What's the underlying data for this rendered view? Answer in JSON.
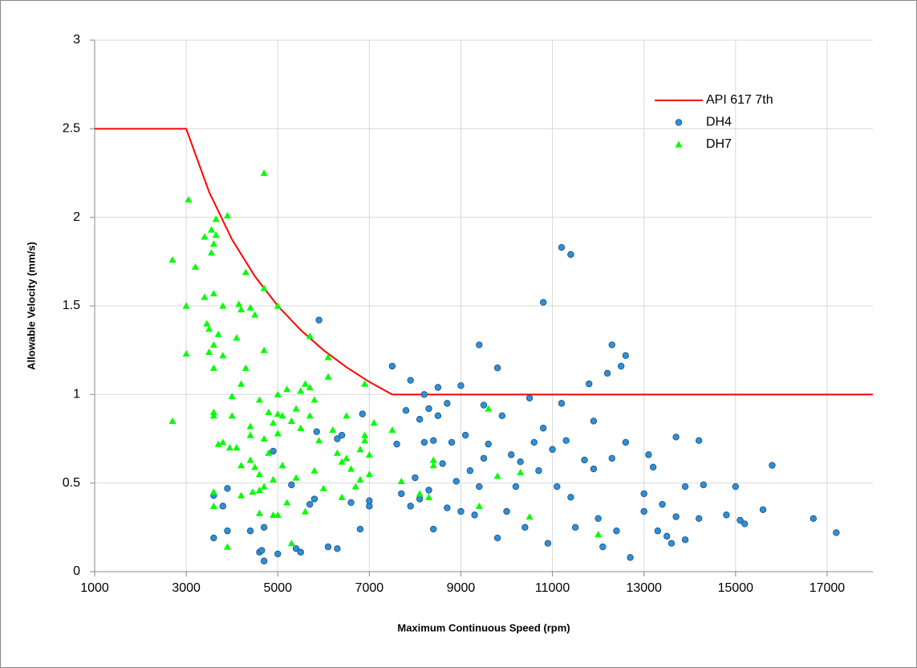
{
  "chart_data": {
    "type": "scatter",
    "x_label": "Maximum Continuous Speed (rpm)",
    "y_label": "Allowable Velocity (mm/s)",
    "xlim": [
      1000,
      18000
    ],
    "xticks": [
      1000,
      3000,
      5000,
      7000,
      9000,
      11000,
      13000,
      15000,
      17000
    ],
    "ylim": [
      0,
      3
    ],
    "yticks": [
      0,
      0.5,
      1,
      1.5,
      2,
      2.5,
      3
    ],
    "grid": true,
    "legend": "upper right",
    "series": [
      {
        "name": "API 617 7th",
        "marker": "line",
        "color": "#ff0000",
        "x": [
          1000,
          3000,
          3500,
          4000,
          4500,
          5000,
          5500,
          6000,
          6500,
          7000,
          7500,
          18000
        ],
        "values": [
          2.5,
          2.5,
          2.143,
          1.875,
          1.667,
          1.5,
          1.364,
          1.25,
          1.154,
          1.071,
          1,
          1
        ]
      },
      {
        "name": "DH4",
        "marker": "circle",
        "color": "#2e8fd8",
        "x": [
          3600,
          3600,
          3800,
          3900,
          3900,
          4400,
          4600,
          4650,
          4700,
          4700,
          4900,
          5000,
          5300,
          5400,
          5500,
          5700,
          5800,
          5850,
          5900,
          6100,
          6300,
          6300,
          6400,
          6600,
          6800,
          6850,
          7000,
          7000,
          7500,
          7600,
          7700,
          7800,
          7900,
          7900,
          8000,
          8100,
          8100,
          8200,
          8200,
          8300,
          8300,
          8400,
          8400,
          8500,
          8500,
          8600,
          8700,
          8700,
          8800,
          8900,
          9000,
          9000,
          9100,
          9200,
          9300,
          9400,
          9400,
          9500,
          9500,
          9600,
          9800,
          9800,
          9900,
          10000,
          10100,
          10200,
          10300,
          10400,
          10500,
          10600,
          10700,
          10800,
          10800,
          10900,
          11000,
          11100,
          11200,
          11200,
          11300,
          11400,
          11400,
          11500,
          11700,
          11800,
          11900,
          11900,
          12000,
          12100,
          12200,
          12300,
          12300,
          12400,
          12500,
          12600,
          12600,
          12700,
          13000,
          13000,
          13100,
          13200,
          13300,
          13400,
          13500,
          13600,
          13700,
          13700,
          13900,
          13900,
          14200,
          14200,
          14300,
          14800,
          15000,
          15100,
          15200,
          15600,
          15800,
          16700,
          17200
        ],
        "values": [
          0.19,
          0.43,
          0.37,
          0.47,
          0.23,
          0.23,
          0.11,
          0.12,
          0.06,
          0.25,
          0.68,
          0.1,
          0.49,
          0.13,
          0.11,
          0.38,
          0.41,
          0.79,
          1.42,
          0.14,
          0.13,
          0.75,
          0.77,
          0.39,
          0.24,
          0.89,
          0.37,
          0.4,
          1.16,
          0.72,
          0.44,
          0.91,
          1.08,
          0.37,
          0.53,
          0.86,
          0.41,
          1.0,
          0.73,
          0.92,
          0.46,
          0.24,
          0.74,
          1.04,
          0.88,
          0.61,
          0.95,
          0.36,
          0.73,
          0.51,
          1.05,
          0.34,
          0.77,
          0.57,
          0.32,
          1.28,
          0.48,
          0.94,
          0.64,
          0.72,
          1.15,
          0.19,
          0.88,
          0.34,
          0.66,
          0.48,
          0.62,
          0.25,
          0.98,
          0.73,
          0.57,
          1.52,
          0.81,
          0.16,
          0.69,
          0.48,
          1.83,
          0.95,
          0.74,
          1.79,
          0.42,
          0.25,
          0.63,
          1.06,
          0.85,
          0.58,
          0.3,
          0.14,
          1.12,
          1.28,
          0.64,
          0.23,
          1.16,
          1.22,
          0.73,
          0.08,
          0.44,
          0.34,
          0.66,
          0.59,
          0.23,
          0.38,
          0.2,
          0.16,
          0.76,
          0.31,
          0.48,
          0.18,
          0.74,
          0.3,
          0.49,
          0.32,
          0.48,
          0.29,
          0.27,
          0.35,
          0.6,
          0.3,
          0.22
        ]
      },
      {
        "name": "DH7",
        "marker": "triangle",
        "color": "#00ff00",
        "x": [
          2700,
          2700,
          3000,
          3000,
          3050,
          3200,
          3400,
          3400,
          3450,
          3500,
          3500,
          3550,
          3550,
          3600,
          3600,
          3600,
          3600,
          3600,
          3600,
          3600,
          3600,
          3650,
          3650,
          3700,
          3700,
          3800,
          3800,
          3800,
          3900,
          3900,
          3950,
          4000,
          4000,
          4100,
          4100,
          4150,
          4200,
          4200,
          4200,
          4200,
          4300,
          4300,
          4400,
          4400,
          4400,
          4400,
          4450,
          4500,
          4500,
          4600,
          4600,
          4600,
          4600,
          4700,
          4700,
          4700,
          4700,
          4700,
          4800,
          4800,
          4900,
          4900,
          4900,
          5000,
          5000,
          5000,
          5000,
          5000,
          5100,
          5100,
          5200,
          5200,
          5300,
          5300,
          5400,
          5400,
          5500,
          5500,
          5600,
          5600,
          5700,
          5700,
          5700,
          5800,
          5800,
          5900,
          6000,
          6100,
          6100,
          6200,
          6300,
          6400,
          6400,
          6500,
          6500,
          6600,
          6700,
          6800,
          6800,
          6900,
          6900,
          6900,
          7000,
          7000,
          7100,
          7500,
          7700,
          8100,
          8300,
          8400,
          8400,
          9400,
          9600,
          9800,
          10300,
          10500,
          12000
        ],
        "values": [
          1.76,
          0.85,
          1.23,
          1.5,
          2.1,
          1.72,
          1.89,
          1.55,
          1.4,
          1.37,
          1.24,
          1.8,
          1.93,
          1.85,
          1.57,
          1.28,
          1.15,
          0.9,
          0.88,
          0.45,
          0.37,
          1.99,
          1.9,
          1.34,
          0.72,
          1.5,
          1.22,
          0.73,
          2.01,
          0.14,
          0.7,
          0.99,
          0.88,
          1.32,
          0.7,
          1.51,
          1.48,
          1.06,
          0.6,
          0.43,
          1.69,
          1.15,
          1.49,
          0.82,
          0.77,
          0.63,
          0.45,
          1.45,
          0.59,
          0.97,
          0.55,
          0.46,
          0.33,
          2.25,
          1.6,
          1.25,
          0.75,
          0.48,
          0.9,
          0.67,
          0.84,
          0.52,
          0.32,
          1.5,
          1.0,
          0.89,
          0.78,
          0.32,
          0.88,
          0.6,
          1.03,
          0.39,
          0.85,
          0.16,
          0.92,
          0.53,
          1.02,
          0.81,
          1.06,
          0.34,
          1.33,
          1.04,
          0.88,
          0.97,
          0.57,
          0.74,
          0.47,
          1.21,
          1.1,
          0.8,
          0.67,
          0.62,
          0.42,
          0.88,
          0.64,
          0.58,
          0.48,
          0.69,
          0.52,
          1.06,
          0.77,
          0.74,
          0.66,
          0.55,
          0.84,
          0.8,
          0.51,
          0.44,
          0.42,
          0.63,
          0.6,
          0.37,
          0.92,
          0.54,
          0.56,
          0.31,
          0.21
        ]
      }
    ]
  }
}
